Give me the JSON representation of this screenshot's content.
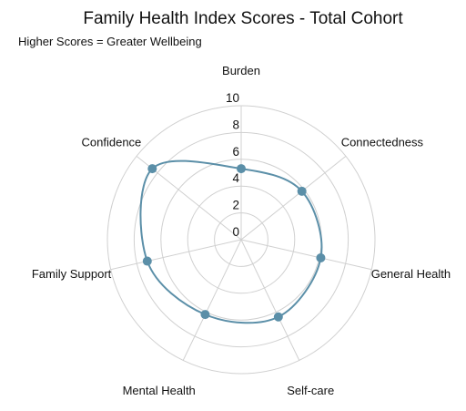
{
  "chart_data": {
    "type": "radar",
    "title": "Family Health Index Scores - Total Cohort",
    "subtitle": "Higher Scores = Greater Wellbeing",
    "axes": [
      "Burden",
      "Connectedness",
      "General Health",
      "Self-care",
      "Mental Health",
      "Family Support",
      "Confidence"
    ],
    "r_range": [
      0,
      10
    ],
    "r_ticks": [
      0,
      2,
      4,
      6,
      8,
      10
    ],
    "grid": true,
    "series": [
      {
        "values": [
          5.3,
          5.8,
          6.1,
          6.4,
          6.2,
          7.2,
          8.5
        ],
        "color": "#5b8fa8"
      }
    ]
  }
}
